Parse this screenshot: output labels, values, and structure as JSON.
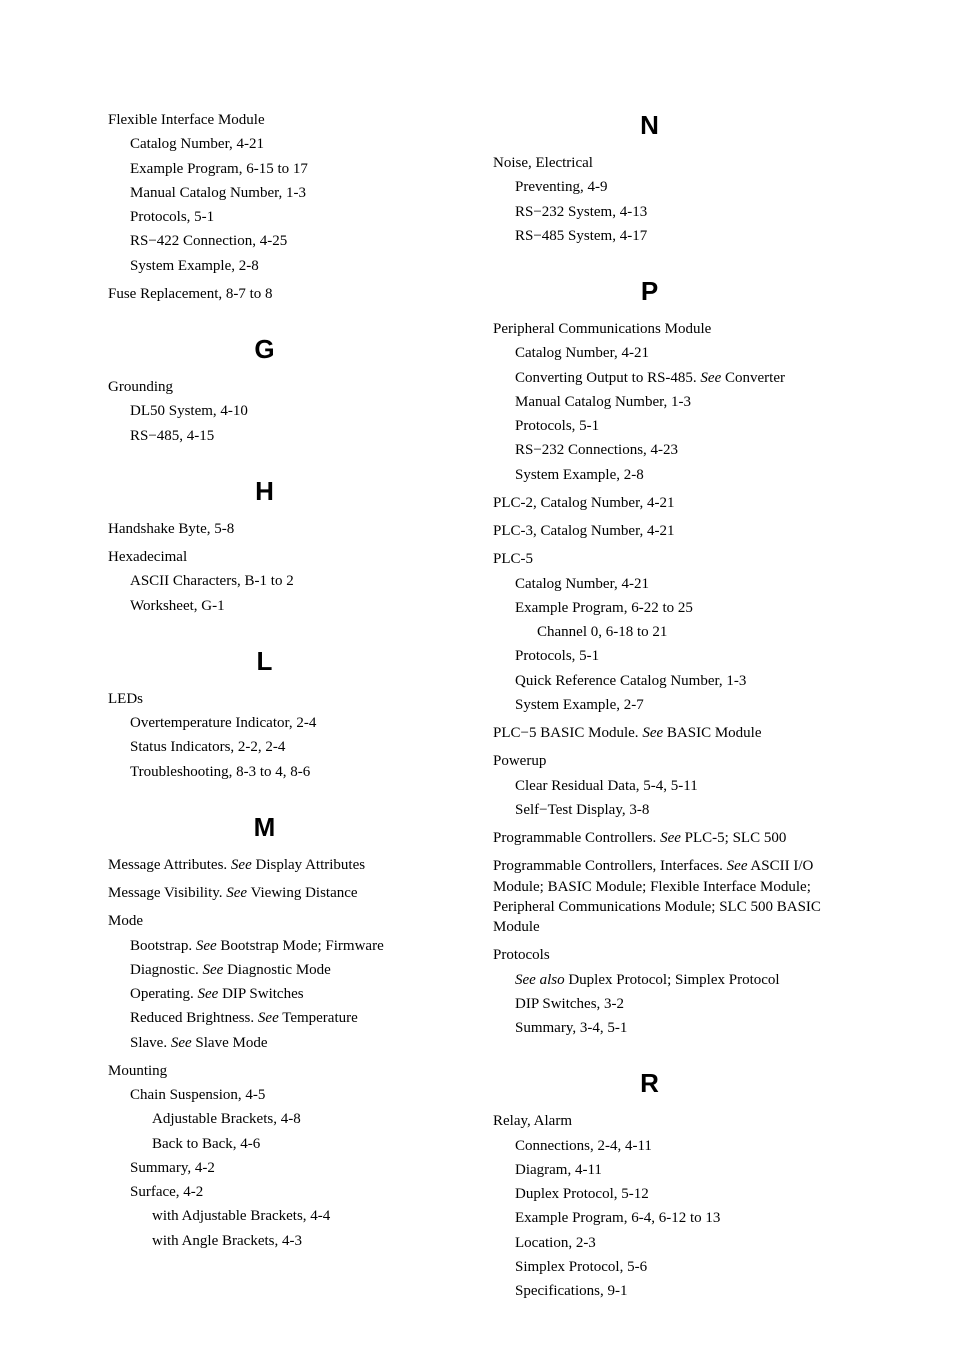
{
  "left": {
    "flexibleInterfaceModule": {
      "title": "Flexible Interface Module",
      "items": [
        "Catalog Number, 4-21",
        "Example Program, 6-15 to 17",
        "Manual Catalog Number, 1-3",
        "Protocols, 5-1",
        "RS−422 Connection, 4-25",
        "System Example, 2-8"
      ]
    },
    "fuseReplacement": "Fuse Replacement, 8-7 to 8",
    "g": {
      "heading": "G",
      "grounding": {
        "title": "Grounding",
        "items": [
          "DL50 System, 4-10",
          "RS−485, 4-15"
        ]
      }
    },
    "h": {
      "heading": "H",
      "handshake": "Handshake Byte, 5-8",
      "hexadecimal": {
        "title": "Hexadecimal",
        "items": [
          "ASCII Characters, B-1 to 2",
          "Worksheet, G-1"
        ]
      }
    },
    "l": {
      "heading": "L",
      "leds": {
        "title": "LEDs",
        "items": [
          "Overtemperature Indicator, 2-4",
          "Status Indicators, 2-2, 2-4",
          "Troubleshooting, 8-3 to 4, 8-6"
        ]
      }
    },
    "m": {
      "heading": "M",
      "messageAttributes": {
        "pre": "Message Attributes. ",
        "see": "See",
        "post": " Display Attributes"
      },
      "messageVisibility": {
        "pre": "Message Visibility. ",
        "see": "See",
        "post": " Viewing Distance"
      },
      "mode": {
        "title": "Mode",
        "bootstrap": {
          "pre": "Bootstrap. ",
          "see": "See",
          "post": " Bootstrap Mode; Firmware"
        },
        "diagnostic": {
          "pre": "Diagnostic. ",
          "see": "See",
          "post": " Diagnostic Mode"
        },
        "operating": {
          "pre": "Operating. ",
          "see": "See",
          "post": " DIP Switches"
        },
        "reducedBrightness": {
          "pre": "Reduced Brightness. ",
          "see": "See",
          "post": " Temperature"
        },
        "slave": {
          "pre": "Slave. ",
          "see": "See",
          "post": " Slave Mode"
        }
      },
      "mounting": {
        "title": "Mounting",
        "chainSuspension": "Chain Suspension, 4-5",
        "adjustableBrackets": "Adjustable Brackets, 4-8",
        "backToBack": "Back to Back, 4-6",
        "summary": "Summary, 4-2",
        "surface": "Surface, 4-2",
        "withAdjustable": "with Adjustable Brackets, 4-4",
        "withAngle": "with Angle Brackets, 4-3"
      }
    }
  },
  "right": {
    "n": {
      "heading": "N",
      "noise": {
        "title": "Noise, Electrical",
        "items": [
          "Preventing, 4-9",
          "RS−232 System, 4-13",
          "RS−485 System, 4-17"
        ]
      }
    },
    "p": {
      "heading": "P",
      "peripheralComm": {
        "title": "Peripheral Communications Module",
        "catalog": "Catalog Number, 4-21",
        "converting": {
          "pre": "Converting Output to RS-485. ",
          "see": "See",
          "post": " Converter"
        },
        "manual": "Manual Catalog Number, 1-3",
        "protocols": "Protocols, 5-1",
        "rs232": "RS−232 Connections, 4-23",
        "sysex": "System Example, 2-8"
      },
      "plc2": "PLC-2, Catalog Number, 4-21",
      "plc3": "PLC-3, Catalog Number, 4-21",
      "plc5": {
        "title": "PLC-5",
        "catalog": "Catalog Number, 4-21",
        "example": "Example Program, 6-22 to 25",
        "channel": "Channel 0, 6-18 to 21",
        "protocols": "Protocols, 5-1",
        "quick": "Quick Reference Catalog Number, 1-3",
        "sysex": "System Example, 2-7"
      },
      "plc5basic": {
        "pre": "PLC−5 BASIC Module. ",
        "see": "See",
        "post": " BASIC Module"
      },
      "powerup": {
        "title": "Powerup",
        "items": [
          "Clear Residual Data, 5-4, 5-11",
          "Self−Test Display, 3-8"
        ]
      },
      "progControllers": {
        "pre": "Programmable Controllers. ",
        "see": "See",
        "post": " PLC-5; SLC 500"
      },
      "progControllersInterfaces": {
        "pre": "Programmable Controllers, Interfaces. ",
        "see": "See",
        "post": " ASCII I/O Module; BASIC Module; Flexible Interface Module; Peripheral Communications Module; SLC 500 BASIC Module"
      },
      "protocols": {
        "title": "Protocols",
        "seeAlso": {
          "see": "See also",
          "post": " Duplex Protocol; Simplex Protocol"
        },
        "dip": "DIP Switches, 3-2",
        "summary": "Summary, 3-4, 5-1"
      }
    },
    "r": {
      "heading": "R",
      "relayAlarm": {
        "title": "Relay, Alarm",
        "items": [
          "Connections, 2-4, 4-11",
          "Diagram, 4-11",
          "Duplex Protocol, 5-12",
          "Example Program, 6-4, 6-12 to 13",
          "Location, 2-3",
          "Simplex Protocol, 5-6",
          "Specifications, 9-1"
        ]
      }
    }
  }
}
